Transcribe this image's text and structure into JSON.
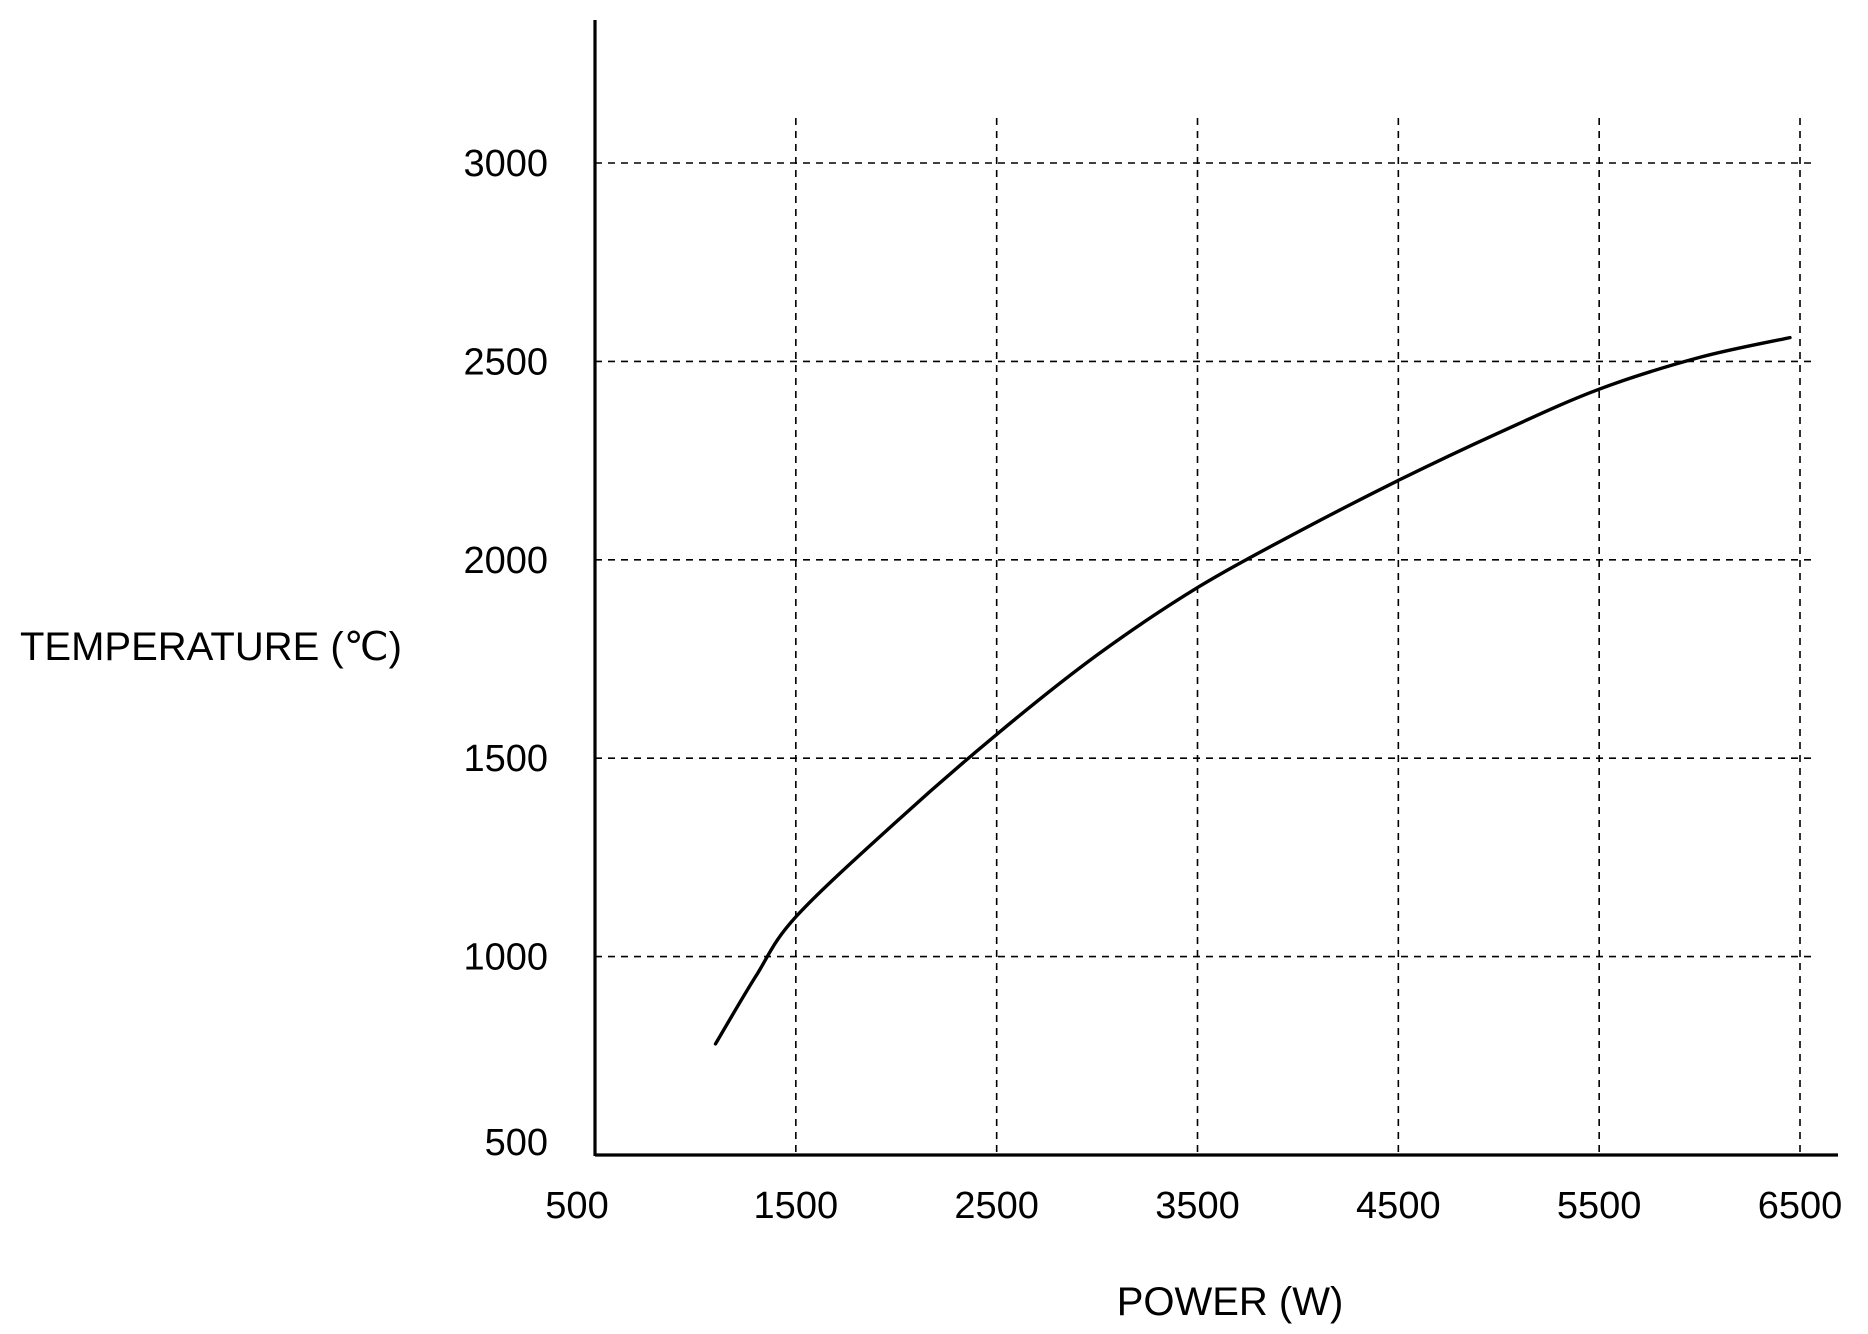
{
  "chart_data": {
    "type": "line",
    "xlabel": "POWER (W)",
    "ylabel": "TEMPERATURE (℃)",
    "xlim": [
      500,
      6500
    ],
    "ylim": [
      500,
      3350
    ],
    "x_ticks": [
      "500",
      "1500",
      "2500",
      "3500",
      "4500",
      "5500",
      "6500"
    ],
    "y_ticks": [
      "500",
      "1000",
      "1500",
      "2000",
      "2500",
      "3000"
    ],
    "grid": "dashed",
    "series": [
      {
        "x": [
          1100,
          1300,
          1500,
          2000,
          2500,
          3000,
          3500,
          4000,
          4500,
          5000,
          5500,
          6000,
          6450
        ],
        "y": [
          780,
          950,
          1100,
          1340,
          1560,
          1760,
          1930,
          2070,
          2200,
          2320,
          2430,
          2510,
          2560
        ]
      }
    ]
  }
}
